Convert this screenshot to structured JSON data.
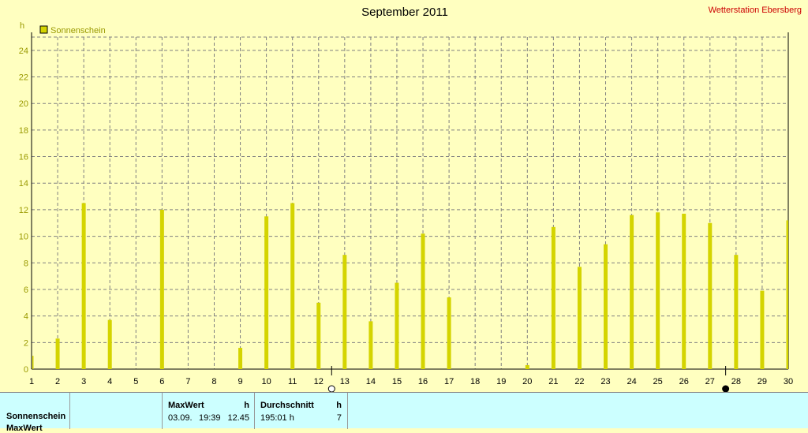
{
  "header": {
    "title": "September 2011",
    "station": "Wetterstation Ebersberg"
  },
  "legend": {
    "label": "Sonnenschein",
    "color": "#D4D400"
  },
  "chart_data": {
    "type": "bar",
    "unit": "h",
    "xlim": [
      1,
      30
    ],
    "ylim": [
      0,
      25
    ],
    "y_ticks": [
      0,
      2,
      4,
      6,
      8,
      10,
      12,
      14,
      16,
      18,
      20,
      22,
      24
    ],
    "categories": [
      "1",
      "2",
      "3",
      "4",
      "5",
      "6",
      "7",
      "8",
      "9",
      "10",
      "11",
      "12",
      "13",
      "14",
      "15",
      "16",
      "17",
      "18",
      "19",
      "20",
      "21",
      "22",
      "23",
      "24",
      "25",
      "26",
      "27",
      "28",
      "29",
      "30"
    ],
    "series": [
      {
        "name": "Sonnenschein",
        "color": "#D4D400",
        "values": [
          1.0,
          2.3,
          12.5,
          3.7,
          0,
          12.0,
          0,
          0,
          1.6,
          11.5,
          12.5,
          5.0,
          8.6,
          3.6,
          6.5,
          10.2,
          5.4,
          0,
          0,
          0.3,
          10.7,
          7.7,
          9.4,
          11.6,
          11.8,
          11.7,
          11.0,
          8.6,
          5.9,
          11.2
        ]
      }
    ],
    "moon_phases": [
      {
        "day": 12.5,
        "phase": "full"
      },
      {
        "day": 27.6,
        "phase": "new"
      }
    ],
    "grid": true
  },
  "stats": {
    "row_label": "Sonnenschein",
    "row_label_2": "MaxWert",
    "maxwert": {
      "header": "MaxWert",
      "unit": "h",
      "date": "03.09.",
      "time": "19:39",
      "value": "12.45"
    },
    "durchschnitt": {
      "header": "Durchschnitt",
      "unit": "h",
      "total": "195:01 h",
      "value": "7"
    }
  }
}
